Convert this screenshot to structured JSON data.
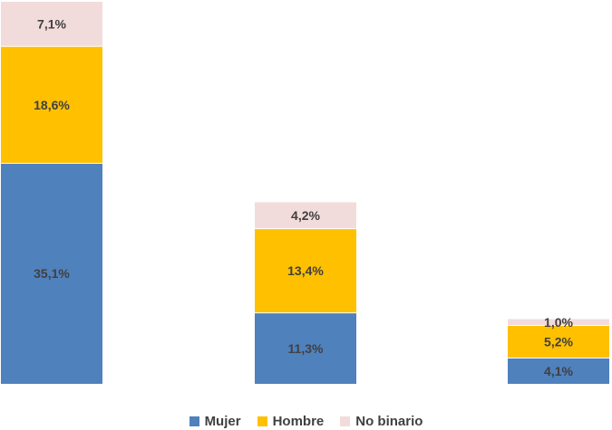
{
  "chart_data": {
    "type": "bar",
    "stacked": true,
    "categories": [
      "",
      "",
      ""
    ],
    "series": [
      {
        "name": "Mujer",
        "color": "#4F81BD",
        "values": [
          35.1,
          11.3,
          4.1
        ],
        "labels": [
          "35,1%",
          "11,3%",
          "4,1%"
        ]
      },
      {
        "name": "Hombre",
        "color": "#FFC000",
        "values": [
          18.6,
          13.4,
          5.2
        ],
        "labels": [
          "18,6%",
          "13,4%",
          "5,2%"
        ]
      },
      {
        "name": "No binario",
        "color": "#F2DCDB",
        "values": [
          7.1,
          4.2,
          1.0
        ],
        "labels": [
          "7,1%",
          "4,2%",
          "1,0%"
        ]
      }
    ],
    "ylim": [
      0,
      60.8
    ],
    "grid": false,
    "legend_position": "bottom"
  }
}
